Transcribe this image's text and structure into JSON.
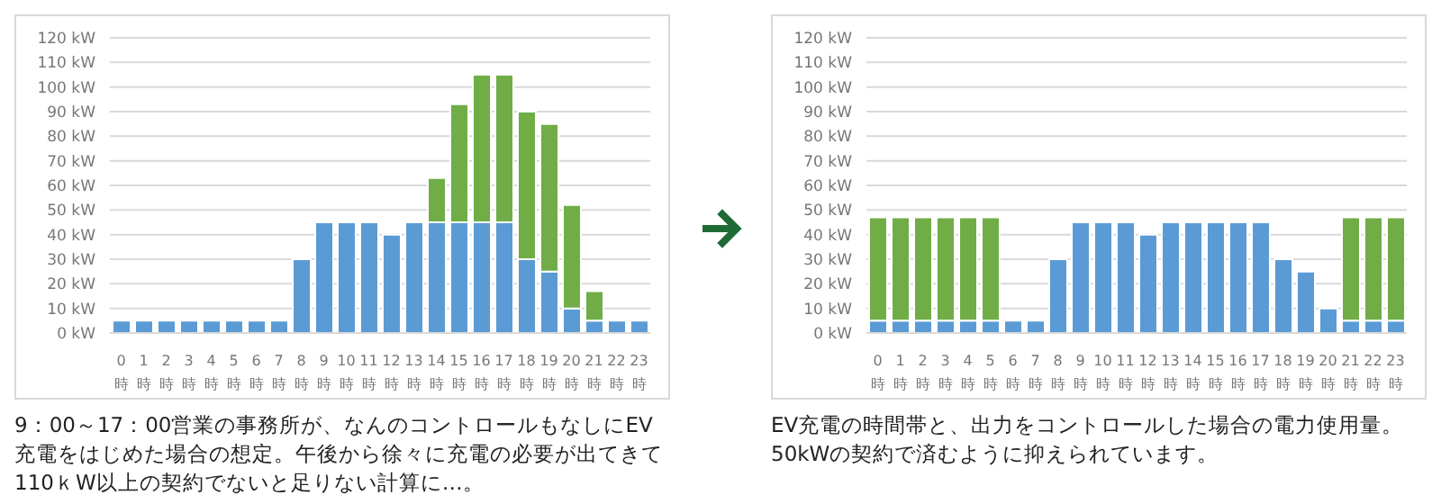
{
  "chart_data": [
    {
      "type": "bar",
      "stacked": true,
      "grid": "y",
      "categories": [
        "0時",
        "1時",
        "2時",
        "3時",
        "4時",
        "5時",
        "6時",
        "7時",
        "8時",
        "9時",
        "10時",
        "11時",
        "12時",
        "13時",
        "14時",
        "15時",
        "16時",
        "17時",
        "18時",
        "19時",
        "20時",
        "21時",
        "22時",
        "23時"
      ],
      "series": [
        {
          "color": "#5b9bd5",
          "values": [
            5,
            5,
            5,
            5,
            5,
            5,
            5,
            5,
            30,
            45,
            45,
            45,
            40,
            45,
            45,
            45,
            45,
            45,
            30,
            25,
            10,
            5,
            5,
            5
          ]
        },
        {
          "color": "#70ad47",
          "values": [
            null,
            null,
            null,
            null,
            null,
            null,
            null,
            null,
            null,
            null,
            null,
            null,
            null,
            null,
            18,
            48,
            60,
            60,
            60,
            60,
            42,
            12,
            null,
            null
          ]
        }
      ],
      "ylim": [
        0,
        120
      ],
      "yticks": [
        {
          "value": 0,
          "label": "0 kW"
        },
        {
          "value": 10,
          "label": "10 kW"
        },
        {
          "value": 20,
          "label": "20 kW"
        },
        {
          "value": 30,
          "label": "30 kW"
        },
        {
          "value": 40,
          "label": "40 kW"
        },
        {
          "value": 50,
          "label": "50 kW"
        },
        {
          "value": 60,
          "label": "60 kW"
        },
        {
          "value": 70,
          "label": "70 kW"
        },
        {
          "value": 80,
          "label": "80 kW"
        },
        {
          "value": 90,
          "label": "90 kW"
        },
        {
          "value": 100,
          "label": "100 kW"
        },
        {
          "value": 110,
          "label": "110 kW"
        },
        {
          "value": 120,
          "label": "120 kW"
        }
      ],
      "annotations": [
        "9：00～17：00営業の事務所が、なんのコントロールもなしにEV充電をはじめた場合の想定。午後から徐々に充電の必要が出てきて110ｋW以上の契約でないと足りない計算に…。"
      ]
    },
    {
      "type": "bar",
      "stacked": true,
      "grid": "y",
      "categories": [
        "0時",
        "1時",
        "2時",
        "3時",
        "4時",
        "5時",
        "6時",
        "7時",
        "8時",
        "9時",
        "10時",
        "11時",
        "12時",
        "13時",
        "14時",
        "15時",
        "16時",
        "17時",
        "18時",
        "19時",
        "20時",
        "21時",
        "22時",
        "23時"
      ],
      "series": [
        {
          "color": "#5b9bd5",
          "values": [
            5,
            5,
            5,
            5,
            5,
            5,
            5,
            5,
            30,
            45,
            45,
            45,
            40,
            45,
            45,
            45,
            45,
            45,
            30,
            25,
            10,
            5,
            5,
            5
          ]
        },
        {
          "color": "#70ad47",
          "values": [
            42,
            42,
            42,
            42,
            42,
            42,
            null,
            null,
            null,
            null,
            null,
            null,
            null,
            null,
            null,
            null,
            null,
            null,
            null,
            null,
            null,
            42,
            42,
            42
          ]
        }
      ],
      "ylim": [
        0,
        120
      ],
      "yticks": [
        {
          "value": 0,
          "label": "0 kW"
        },
        {
          "value": 10,
          "label": "10 kW"
        },
        {
          "value": 20,
          "label": "20 kW"
        },
        {
          "value": 30,
          "label": "30 kW"
        },
        {
          "value": 40,
          "label": "40 kW"
        },
        {
          "value": 50,
          "label": "50 kW"
        },
        {
          "value": 60,
          "label": "60 kW"
        },
        {
          "value": 70,
          "label": "70 kW"
        },
        {
          "value": 80,
          "label": "80 kW"
        },
        {
          "value": 90,
          "label": "90 kW"
        },
        {
          "value": 100,
          "label": "100 kW"
        },
        {
          "value": 110,
          "label": "110 kW"
        },
        {
          "value": 120,
          "label": "120 kW"
        }
      ],
      "annotations": [
        "EV充電の時間帯と、出力をコントロールした場合の電力使用量。50kWの契約で済むように抑えられています。"
      ]
    }
  ]
}
